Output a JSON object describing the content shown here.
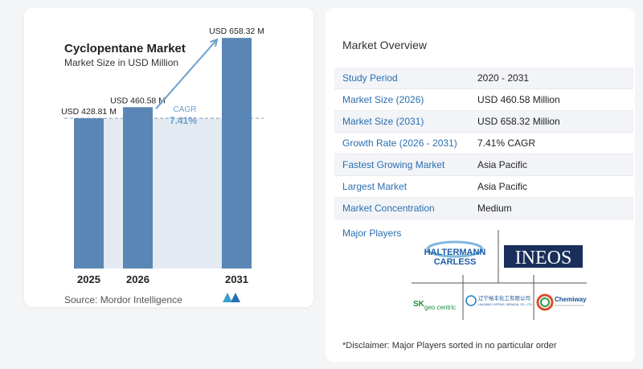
{
  "chart_data": {
    "type": "bar",
    "title": "Cyclopentane Market",
    "subtitle": "Market Size in USD Million",
    "categories": [
      "2025",
      "2026",
      "2031"
    ],
    "values": [
      428.81,
      460.58,
      658.32
    ],
    "data_labels": [
      "USD 428.81 M",
      "USD 460.58 M",
      "USD 658.32 M"
    ],
    "cagr_label": "CAGR",
    "cagr_value": "7.41%",
    "bar_color": "#5a86b5",
    "band_color": "#e3eaf2",
    "arrow_color": "#6a9fcf",
    "xlabel": "",
    "ylabel": "",
    "ylim": [
      0,
      700
    ]
  },
  "source": "Source:  Mordor Intelligence",
  "overview": {
    "title": "Market Overview",
    "rows": [
      {
        "label": "Study Period",
        "value": "2020 - 2031"
      },
      {
        "label": "Market Size (2026)",
        "value": "USD 460.58 Million"
      },
      {
        "label": "Market Size (2031)",
        "value": "USD 658.32 Million"
      },
      {
        "label": "Growth Rate (2026 - 2031)",
        "value": "7.41% CAGR"
      },
      {
        "label": "Fastest Growing Market",
        "value": "Asia Pacific"
      },
      {
        "label": "Largest Market",
        "value": "Asia Pacific"
      },
      {
        "label": "Market Concentration",
        "value": "Medium"
      }
    ],
    "major_players_title": "Major Players",
    "players": {
      "haltermann_line1": "HALTERMANN",
      "haltermann_line2": "CARLESS",
      "ineos": "INEOS",
      "sk_main": "SK",
      "sk_sub": "geo centric",
      "liaoning_cn": "辽宁裕丰化工有限公司",
      "liaoning_en": "LIAONING YUFENG CHEMICAL CO., LTD",
      "chemiway": "Chemiway"
    },
    "disclaimer": "*Disclaimer: Major Players sorted in no particular order"
  }
}
